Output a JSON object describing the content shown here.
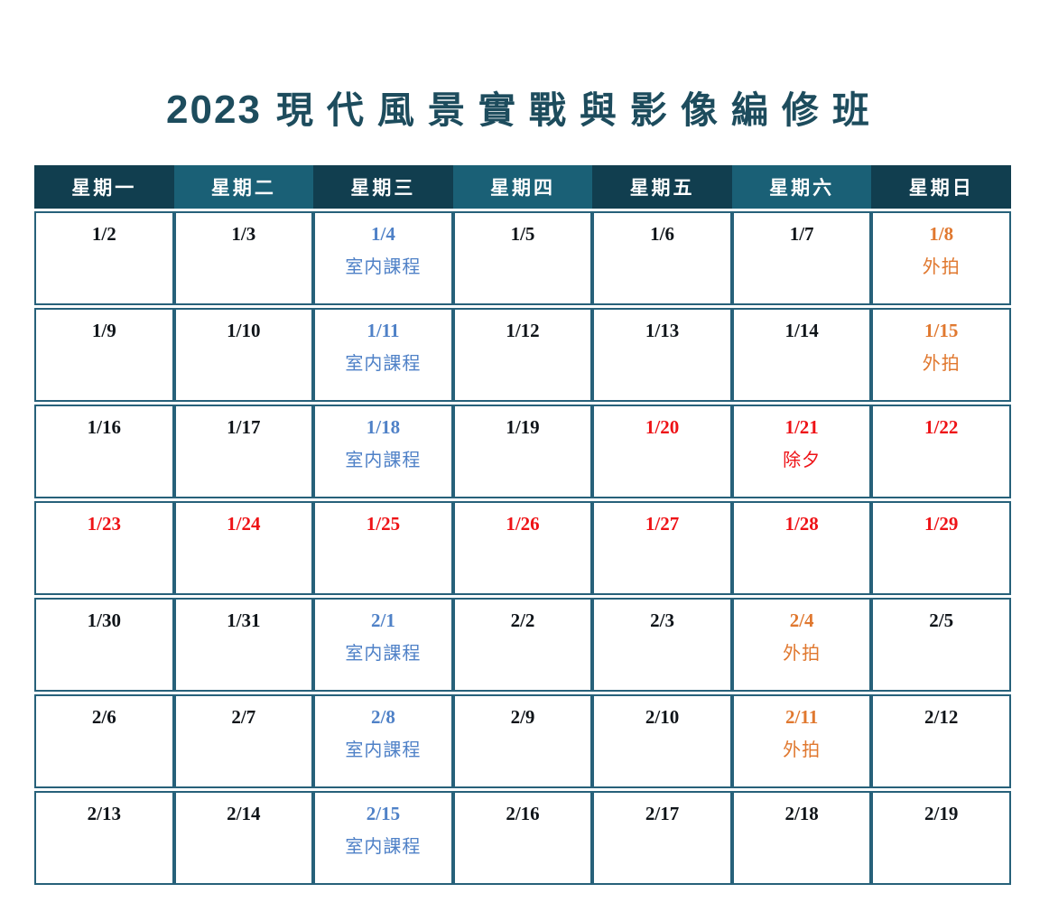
{
  "title": {
    "year": "2023",
    "text": "現代風景實戰與影像編修班"
  },
  "weekday_headers": [
    "星期一",
    "星期二",
    "星期三",
    "星期四",
    "星期五",
    "星期六",
    "星期日"
  ],
  "colors": {
    "title": "#1d4c5d",
    "header_dark": "#113e4f",
    "header_light": "#1a6076",
    "border": "#27617a",
    "date_default": "#0f1419",
    "indoor_blue": "#4f81c7",
    "outdoor_orange": "#e0782f",
    "holiday_red": "#ee1216"
  },
  "legend": {
    "indoor_label": "室内課程",
    "outdoor_label": "外拍",
    "eve_label": "除夕"
  },
  "rows": [
    {
      "cells": [
        {
          "date": "1/2",
          "type": "default",
          "label": ""
        },
        {
          "date": "1/3",
          "type": "default",
          "label": ""
        },
        {
          "date": "1/4",
          "type": "indoor",
          "label": "室内課程"
        },
        {
          "date": "1/5",
          "type": "default",
          "label": ""
        },
        {
          "date": "1/6",
          "type": "default",
          "label": ""
        },
        {
          "date": "1/7",
          "type": "default",
          "label": ""
        },
        {
          "date": "1/8",
          "type": "outdoor",
          "label": "外拍"
        }
      ]
    },
    {
      "cells": [
        {
          "date": "1/9",
          "type": "default",
          "label": ""
        },
        {
          "date": "1/10",
          "type": "default",
          "label": ""
        },
        {
          "date": "1/11",
          "type": "indoor",
          "label": "室内課程"
        },
        {
          "date": "1/12",
          "type": "default",
          "label": ""
        },
        {
          "date": "1/13",
          "type": "default",
          "label": ""
        },
        {
          "date": "1/14",
          "type": "default",
          "label": ""
        },
        {
          "date": "1/15",
          "type": "outdoor",
          "label": "外拍"
        }
      ]
    },
    {
      "cells": [
        {
          "date": "1/16",
          "type": "default",
          "label": ""
        },
        {
          "date": "1/17",
          "type": "default",
          "label": ""
        },
        {
          "date": "1/18",
          "type": "indoor",
          "label": "室内課程"
        },
        {
          "date": "1/19",
          "type": "default",
          "label": ""
        },
        {
          "date": "1/20",
          "type": "holiday",
          "label": ""
        },
        {
          "date": "1/21",
          "type": "holiday",
          "label": "除夕"
        },
        {
          "date": "1/22",
          "type": "holiday",
          "label": ""
        }
      ]
    },
    {
      "cells": [
        {
          "date": "1/23",
          "type": "holiday",
          "label": ""
        },
        {
          "date": "1/24",
          "type": "holiday",
          "label": ""
        },
        {
          "date": "1/25",
          "type": "holiday",
          "label": ""
        },
        {
          "date": "1/26",
          "type": "holiday",
          "label": ""
        },
        {
          "date": "1/27",
          "type": "holiday",
          "label": ""
        },
        {
          "date": "1/28",
          "type": "holiday",
          "label": ""
        },
        {
          "date": "1/29",
          "type": "holiday",
          "label": ""
        }
      ]
    },
    {
      "cells": [
        {
          "date": "1/30",
          "type": "default",
          "label": ""
        },
        {
          "date": "1/31",
          "type": "default",
          "label": ""
        },
        {
          "date": "2/1",
          "type": "indoor",
          "label": "室内課程"
        },
        {
          "date": "2/2",
          "type": "default",
          "label": ""
        },
        {
          "date": "2/3",
          "type": "default",
          "label": ""
        },
        {
          "date": "2/4",
          "type": "outdoor",
          "label": "外拍"
        },
        {
          "date": "2/5",
          "type": "default",
          "label": ""
        }
      ]
    },
    {
      "cells": [
        {
          "date": "2/6",
          "type": "default",
          "label": ""
        },
        {
          "date": "2/7",
          "type": "default",
          "label": ""
        },
        {
          "date": "2/8",
          "type": "indoor",
          "label": "室内課程"
        },
        {
          "date": "2/9",
          "type": "default",
          "label": ""
        },
        {
          "date": "2/10",
          "type": "default",
          "label": ""
        },
        {
          "date": "2/11",
          "type": "outdoor",
          "label": "外拍"
        },
        {
          "date": "2/12",
          "type": "default",
          "label": ""
        }
      ]
    },
    {
      "cells": [
        {
          "date": "2/13",
          "type": "default",
          "label": ""
        },
        {
          "date": "2/14",
          "type": "default",
          "label": ""
        },
        {
          "date": "2/15",
          "type": "indoor",
          "label": "室内課程"
        },
        {
          "date": "2/16",
          "type": "default",
          "label": ""
        },
        {
          "date": "2/17",
          "type": "default",
          "label": ""
        },
        {
          "date": "2/18",
          "type": "default",
          "label": ""
        },
        {
          "date": "2/19",
          "type": "default",
          "label": ""
        }
      ]
    }
  ]
}
